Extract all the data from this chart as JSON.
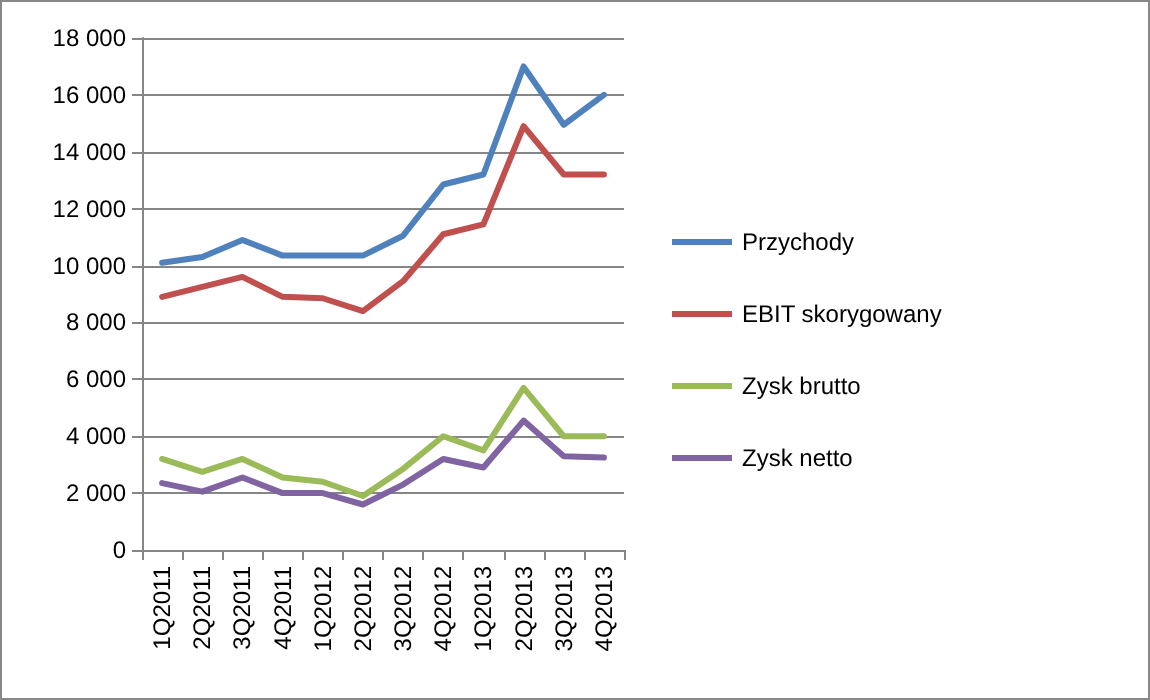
{
  "chart_data": {
    "type": "line",
    "categories": [
      "1Q2011",
      "2Q2011",
      "3Q2011",
      "4Q2011",
      "1Q2012",
      "2Q2012",
      "3Q2012",
      "4Q2012",
      "1Q2013",
      "2Q2013",
      "3Q2013",
      "4Q2013"
    ],
    "series": [
      {
        "name": "Przychody",
        "color": "#4f81bd",
        "values": [
          10100,
          10300,
          10900,
          10350,
          10350,
          10350,
          11050,
          12850,
          13200,
          17000,
          14950,
          16000
        ]
      },
      {
        "name": "EBIT skorygowany",
        "color": "#c0504d",
        "values": [
          8900,
          9250,
          9600,
          8900,
          8850,
          8400,
          9450,
          11100,
          11450,
          14900,
          13200,
          13200
        ]
      },
      {
        "name": "Zysk brutto",
        "color": "#9bbb59",
        "values": [
          3200,
          2750,
          3200,
          2550,
          2400,
          1900,
          2850,
          4000,
          3500,
          5700,
          4000,
          4000
        ]
      },
      {
        "name": "Zysk netto",
        "color": "#8064a2",
        "values": [
          2350,
          2050,
          2550,
          2000,
          2000,
          1600,
          2300,
          3200,
          2900,
          4550,
          3300,
          3250
        ]
      }
    ],
    "ylim": [
      0,
      18000
    ],
    "yticks": [
      0,
      {
        "value": 2000,
        "label": "2 000"
      },
      {
        "value": 4000,
        "label": "4 000"
      },
      {
        "value": 6000,
        "label": "6 000"
      },
      {
        "value": 8000,
        "label": "8 000"
      },
      {
        "value": 10000,
        "label": "10 000"
      },
      {
        "value": 12000,
        "label": "12 000"
      },
      {
        "value": 14000,
        "label": "14 000"
      },
      {
        "value": 16000,
        "label": "16 000"
      },
      {
        "value": 18000,
        "label": "18 000"
      }
    ],
    "grid": "y",
    "legend": "right",
    "marker": "none",
    "line_style": "solid"
  }
}
